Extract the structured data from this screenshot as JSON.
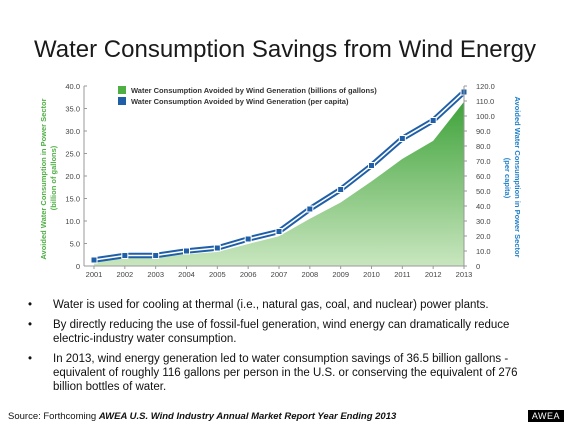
{
  "title": "Water Consumption Savings from Wind Energy",
  "bullets": [
    "Water is used for cooling at thermal (i.e., natural gas, coal, and nuclear) power plants.",
    "By directly reducing the use of fossil-fuel generation, wind energy can dramatically reduce electric-industry water consumption.",
    "In 2013, wind energy generation led to water consumption savings of 36.5 billion gallons - equivalent of roughly 116 gallons per person in the U.S. or conserving the equivalent of 276 billion bottles of water."
  ],
  "source": {
    "prefix": "Source: Forthcoming ",
    "emphasis": "AWEA U.S. Wind Industry Annual Market Report Year Ending 2013"
  },
  "badge": "AWEA",
  "chart_data": {
    "type": "area",
    "categories": [
      "2001",
      "2002",
      "2003",
      "2004",
      "2005",
      "2006",
      "2007",
      "2008",
      "2009",
      "2010",
      "2011",
      "2012",
      "2013"
    ],
    "ylabel_left": "Avoided Water Consumption in Power Sector (billion of gallons)",
    "ylabel_right": "Avoided Water Consumption in Power Sector (per capita)",
    "yticks_left": [
      "0",
      "5.0",
      "10.0",
      "15.0",
      "20.0",
      "25.0",
      "30.0",
      "35.0",
      "40.0"
    ],
    "yticks_right": [
      "0",
      "10.0",
      "20.0",
      "30.0",
      "40.0",
      "50.0",
      "60.0",
      "70.0",
      "80.0",
      "90.0",
      "100.0",
      "110.0",
      "120.0"
    ],
    "ylim_left": [
      0,
      40
    ],
    "ylim_right": [
      0,
      120
    ],
    "series": [
      {
        "name": "Water Consumption Avoided by Wind Generation (billions of gallons)",
        "axis": "left",
        "kind": "area",
        "color": "#4fae44",
        "values": [
          1.1,
          1.8,
          1.9,
          2.6,
          3.1,
          4.9,
          6.6,
          10.5,
          14.1,
          18.8,
          23.8,
          27.8,
          36.5
        ]
      },
      {
        "name": "Water Consumption Avoided by Wind Generation (per capita)",
        "axis": "right",
        "kind": "line",
        "color": "#1f5fa8",
        "values": [
          4,
          7,
          7,
          10,
          12,
          18,
          23,
          38,
          51,
          67,
          85,
          97,
          116
        ]
      }
    ],
    "legend_position": "top-left",
    "colors": {
      "left_axis_label": "#4fae44",
      "right_axis_label": "#1f7fc8"
    }
  }
}
